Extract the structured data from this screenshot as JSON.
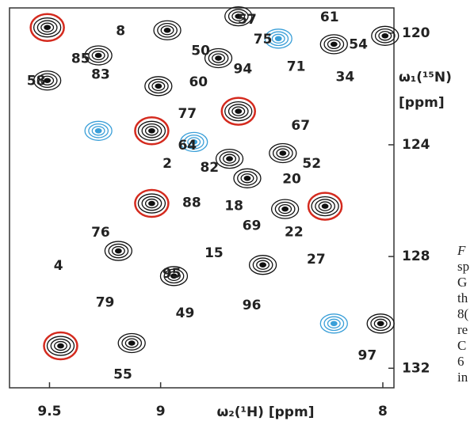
{
  "chart_data": {
    "type": "contour",
    "x_label": "ω₂(¹H)  [ppm]",
    "y_label": "ω₁(¹⁵N)",
    "y_unit": "[ppm]",
    "xlim": [
      9.68,
      7.95
    ],
    "ylim": [
      119.1,
      132.7
    ],
    "xticks": [
      9.5,
      9.0,
      8.0
    ],
    "yticks": [
      120,
      124,
      128,
      132
    ],
    "colors": {
      "positive": "#111111",
      "negative": "#3a9fd8",
      "highlight": "#d42a1e"
    },
    "peaks": [
      {
        "x": 9.51,
        "y": 119.8,
        "sign": "positive",
        "highlight": true
      },
      {
        "x": 8.97,
        "y": 119.9,
        "sign": "positive",
        "highlight": false
      },
      {
        "x": 9.28,
        "y": 120.8,
        "sign": "positive",
        "highlight": false
      },
      {
        "x": 9.51,
        "y": 121.7,
        "sign": "positive",
        "highlight": false
      },
      {
        "x": 8.74,
        "y": 120.9,
        "sign": "positive",
        "highlight": false
      },
      {
        "x": 8.65,
        "y": 119.4,
        "sign": "positive",
        "highlight": false
      },
      {
        "x": 8.47,
        "y": 120.2,
        "sign": "negative",
        "highlight": false
      },
      {
        "x": 8.22,
        "y": 120.4,
        "sign": "positive",
        "highlight": false
      },
      {
        "x": 7.99,
        "y": 120.1,
        "sign": "positive",
        "highlight": false
      },
      {
        "x": 9.01,
        "y": 121.9,
        "sign": "positive",
        "highlight": false
      },
      {
        "x": 9.28,
        "y": 123.5,
        "sign": "negative",
        "highlight": false
      },
      {
        "x": 9.04,
        "y": 123.5,
        "sign": "positive",
        "highlight": true
      },
      {
        "x": 8.85,
        "y": 123.9,
        "sign": "negative",
        "highlight": false
      },
      {
        "x": 8.65,
        "y": 122.8,
        "sign": "positive",
        "highlight": true
      },
      {
        "x": 8.69,
        "y": 124.5,
        "sign": "positive",
        "highlight": false
      },
      {
        "x": 8.61,
        "y": 125.2,
        "sign": "positive",
        "highlight": false
      },
      {
        "x": 8.45,
        "y": 124.3,
        "sign": "positive",
        "highlight": false
      },
      {
        "x": 8.44,
        "y": 126.3,
        "sign": "positive",
        "highlight": false
      },
      {
        "x": 8.26,
        "y": 126.2,
        "sign": "positive",
        "highlight": true
      },
      {
        "x": 9.04,
        "y": 126.1,
        "sign": "positive",
        "highlight": true
      },
      {
        "x": 9.19,
        "y": 127.8,
        "sign": "positive",
        "highlight": false
      },
      {
        "x": 8.94,
        "y": 128.7,
        "sign": "positive",
        "highlight": false
      },
      {
        "x": 8.54,
        "y": 128.3,
        "sign": "positive",
        "highlight": false
      },
      {
        "x": 8.22,
        "y": 130.4,
        "sign": "negative",
        "highlight": false
      },
      {
        "x": 8.01,
        "y": 130.4,
        "sign": "positive",
        "highlight": false
      },
      {
        "x": 9.45,
        "y": 131.2,
        "sign": "positive",
        "highlight": true
      },
      {
        "x": 9.13,
        "y": 131.1,
        "sign": "positive",
        "highlight": false
      }
    ],
    "labels": [
      {
        "text": "8",
        "x": 9.18,
        "y": 119.94
      },
      {
        "text": "85",
        "x": 9.36,
        "y": 120.93
      },
      {
        "text": "83",
        "x": 9.27,
        "y": 121.49
      },
      {
        "text": "58",
        "x": 9.56,
        "y": 121.72
      },
      {
        "text": "50",
        "x": 8.82,
        "y": 120.65
      },
      {
        "text": "57",
        "x": 8.61,
        "y": 119.52
      },
      {
        "text": "75",
        "x": 8.54,
        "y": 120.23
      },
      {
        "text": "61",
        "x": 8.24,
        "y": 119.44
      },
      {
        "text": "54",
        "x": 8.11,
        "y": 120.42
      },
      {
        "text": "71",
        "x": 8.39,
        "y": 121.21
      },
      {
        "text": "94",
        "x": 8.63,
        "y": 121.3
      },
      {
        "text": "34",
        "x": 8.17,
        "y": 121.58
      },
      {
        "text": "60",
        "x": 8.83,
        "y": 121.77
      },
      {
        "text": "77",
        "x": 8.88,
        "y": 122.9
      },
      {
        "text": "64",
        "x": 8.88,
        "y": 124.03
      },
      {
        "text": "2",
        "x": 8.97,
        "y": 124.68
      },
      {
        "text": "82",
        "x": 8.78,
        "y": 124.82
      },
      {
        "text": "67",
        "x": 8.37,
        "y": 123.32
      },
      {
        "text": "52",
        "x": 8.32,
        "y": 124.68
      },
      {
        "text": "20",
        "x": 8.41,
        "y": 125.24
      },
      {
        "text": "18",
        "x": 8.67,
        "y": 126.2
      },
      {
        "text": "88",
        "x": 8.86,
        "y": 126.08
      },
      {
        "text": "69",
        "x": 8.59,
        "y": 126.9
      },
      {
        "text": "22",
        "x": 8.4,
        "y": 127.13
      },
      {
        "text": "15",
        "x": 8.76,
        "y": 127.89
      },
      {
        "text": "76",
        "x": 9.27,
        "y": 127.15
      },
      {
        "text": "4",
        "x": 9.46,
        "y": 128.34
      },
      {
        "text": "95",
        "x": 8.95,
        "y": 128.62
      },
      {
        "text": "27",
        "x": 8.3,
        "y": 128.11
      },
      {
        "text": "79",
        "x": 9.25,
        "y": 129.66
      },
      {
        "text": "49",
        "x": 8.89,
        "y": 130.03
      },
      {
        "text": "96",
        "x": 8.59,
        "y": 129.75
      },
      {
        "text": "97",
        "x": 8.07,
        "y": 131.55
      },
      {
        "text": "55",
        "x": 9.17,
        "y": 132.23
      }
    ],
    "caption_fragments": [
      "F",
      "sp",
      "G",
      "th",
      "8(",
      "re",
      "C",
      "6",
      "in"
    ]
  }
}
